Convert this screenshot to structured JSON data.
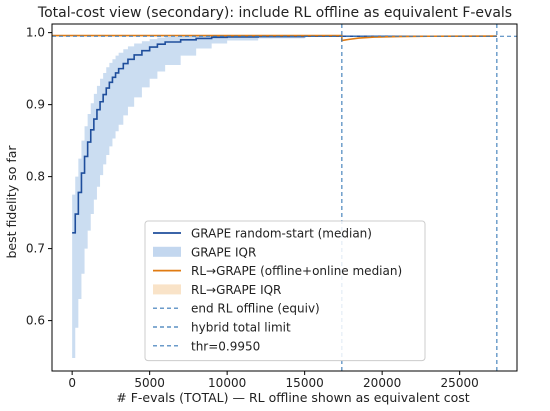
{
  "chart_data": {
    "type": "line",
    "title": "Total-cost view (secondary): include RL offline as equivalent F-evals",
    "xlabel": "# F-evals (TOTAL) — RL offline shown as equivalent cost",
    "ylabel": "best fidelity so far",
    "xlim": [
      -1300,
      28700
    ],
    "ylim": [
      0.53,
      1.012
    ],
    "xticks": [
      0,
      5000,
      10000,
      15000,
      20000,
      25000
    ],
    "yticks": [
      0.6,
      0.7,
      0.8,
      0.9,
      1.0
    ],
    "xtick_labels": [
      "0",
      "5000",
      "10000",
      "15000",
      "20000",
      "25000"
    ],
    "ytick_labels": [
      "0.6",
      "0.7",
      "0.8",
      "0.9",
      "1.0"
    ],
    "grid": false,
    "legend_position": "lower-center",
    "series": [
      {
        "name": "GRAPE random-start (median)",
        "kind": "step-line",
        "color": "#1f4e9c",
        "x": [
          0,
          200,
          400,
          600,
          800,
          1000,
          1200,
          1400,
          1600,
          1800,
          2000,
          2200,
          2400,
          2600,
          2800,
          3000,
          3300,
          3600,
          4000,
          4500,
          5000,
          5500,
          6000,
          7000,
          8000,
          9000,
          10000,
          12000,
          15000,
          20000,
          25000,
          27400
        ],
        "y": [
          0.722,
          0.748,
          0.778,
          0.805,
          0.828,
          0.848,
          0.865,
          0.88,
          0.893,
          0.904,
          0.914,
          0.923,
          0.931,
          0.938,
          0.944,
          0.95,
          0.957,
          0.963,
          0.969,
          0.975,
          0.98,
          0.984,
          0.987,
          0.99,
          0.992,
          0.9935,
          0.994,
          0.9945,
          0.995,
          0.995,
          0.995,
          0.995
        ]
      },
      {
        "name": "GRAPE IQR",
        "kind": "band",
        "color": "#a9c6e8",
        "x": [
          0,
          200,
          400,
          600,
          800,
          1000,
          1200,
          1400,
          1600,
          1800,
          2000,
          2200,
          2400,
          2600,
          2800,
          3000,
          3300,
          3600,
          4000,
          4500,
          5000,
          5500,
          6000,
          7000,
          8000,
          9000,
          10000,
          12000,
          15000,
          20000,
          25000,
          27400
        ],
        "lower": [
          0.548,
          0.59,
          0.63,
          0.665,
          0.7,
          0.725,
          0.748,
          0.768,
          0.786,
          0.802,
          0.817,
          0.83,
          0.842,
          0.853,
          0.863,
          0.872,
          0.885,
          0.897,
          0.91,
          0.924,
          0.936,
          0.946,
          0.955,
          0.968,
          0.978,
          0.985,
          0.989,
          0.992,
          0.994,
          0.995,
          0.995,
          0.995
        ],
        "upper": [
          0.775,
          0.8,
          0.825,
          0.85,
          0.87,
          0.887,
          0.902,
          0.915,
          0.926,
          0.936,
          0.944,
          0.952,
          0.958,
          0.963,
          0.968,
          0.972,
          0.977,
          0.981,
          0.985,
          0.988,
          0.991,
          0.993,
          0.994,
          0.995,
          0.9955,
          0.996,
          0.996,
          0.996,
          0.996,
          0.996,
          0.996,
          0.996
        ]
      },
      {
        "name": "RL→GRAPE (offline+online median)",
        "kind": "line",
        "color": "#e07b12",
        "x": [
          -1300,
          17400,
          17400,
          17800,
          18500,
          19500,
          21000,
          23000,
          27400
        ],
        "y": [
          0.996,
          0.996,
          0.989,
          0.9905,
          0.9925,
          0.9938,
          0.9945,
          0.995,
          0.9952
        ]
      },
      {
        "name": "RL→GRAPE IQR",
        "kind": "band",
        "color": "#f7d7b0",
        "x": [
          17400,
          18500,
          21000,
          27400
        ],
        "lower": [
          0.988,
          0.992,
          0.994,
          0.995
        ],
        "upper": [
          0.99,
          0.993,
          0.995,
          0.9955
        ]
      },
      {
        "name": "end RL offline (equiv)",
        "kind": "vline",
        "color": "#3a7ab8",
        "x": 17400
      },
      {
        "name": "hybrid total limit",
        "kind": "vline",
        "color": "#3a7ab8",
        "x": 27400
      },
      {
        "name": "thr=0.9950",
        "kind": "hline",
        "color": "#3a7ab8",
        "y": 0.995
      }
    ]
  }
}
